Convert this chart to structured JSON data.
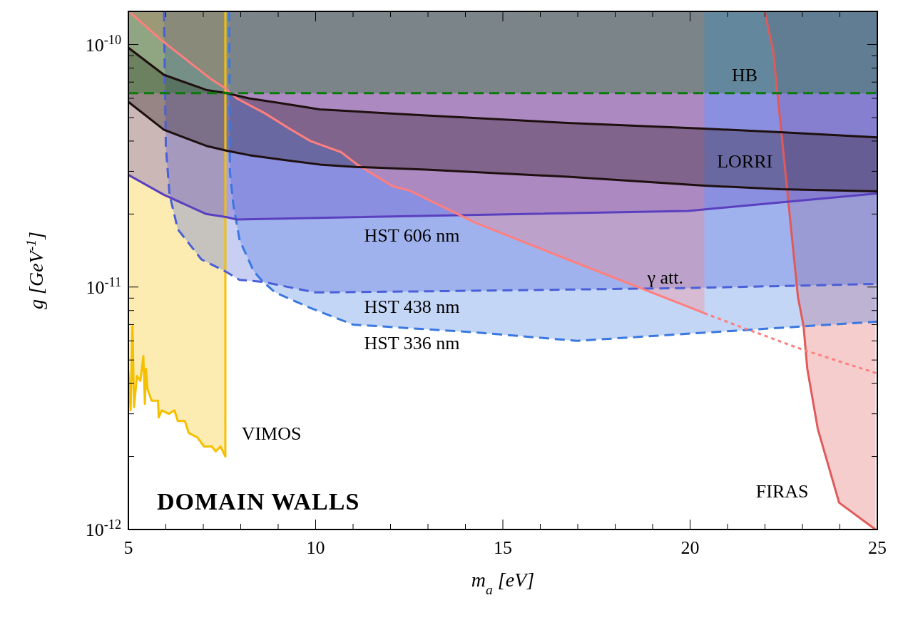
{
  "chart_data": {
    "type": "line",
    "xlabel": "m$_{a}$ [eV]",
    "ylabel": "g [GeV$^{-1}$]",
    "log": "y",
    "grid": false,
    "xlim": [
      5,
      25
    ],
    "ylim": [
      1e-12,
      1.37e-10
    ],
    "xticks": [
      5,
      {
        "value": 6,
        "label": null
      },
      {
        "value": 7,
        "label": null
      },
      {
        "value": 8,
        "label": null
      },
      {
        "value": 9,
        "label": null
      },
      10,
      {
        "value": 11,
        "label": null
      },
      {
        "value": 12,
        "label": null
      },
      {
        "value": 13,
        "label": null
      },
      {
        "value": 14,
        "label": null
      },
      15,
      {
        "value": 16,
        "label": null
      },
      {
        "value": 17,
        "label": null
      },
      {
        "value": 18,
        "label": null
      },
      {
        "value": 19,
        "label": null
      },
      20,
      {
        "value": 21,
        "label": null
      },
      {
        "value": 22,
        "label": null
      },
      {
        "value": 23,
        "label": null
      },
      {
        "value": 24,
        "label": null
      },
      25
    ],
    "yticks": [
      {
        "value": 1e-12,
        "label": "10$^{-12}$"
      },
      {
        "value": 2e-12,
        "label": null
      },
      {
        "value": 3e-12,
        "label": null
      },
      {
        "value": 4e-12,
        "label": null
      },
      {
        "value": 5e-12,
        "label": null
      },
      {
        "value": 6e-12,
        "label": null
      },
      {
        "value": 7e-12,
        "label": null
      },
      {
        "value": 8e-12,
        "label": null
      },
      {
        "value": 9e-12,
        "label": null
      },
      {
        "value": 1e-11,
        "label": "10$^{-11}$"
      },
      {
        "value": 2e-11,
        "label": null
      },
      {
        "value": 3e-11,
        "label": null
      },
      {
        "value": 4e-11,
        "label": null
      },
      {
        "value": 5e-11,
        "label": null
      },
      {
        "value": 6e-11,
        "label": null
      },
      {
        "value": 7e-11,
        "label": null
      },
      {
        "value": 8e-11,
        "label": null
      },
      {
        "value": 9e-11,
        "label": null
      },
      {
        "value": 1e-10,
        "label": "10$^{-10}$"
      }
    ],
    "series": [
      {
        "name": "VIMOS",
        "color": "#f5c000",
        "x": [
          5.0,
          5.06,
          5.11,
          5.15,
          5.23,
          5.32,
          5.4,
          5.44,
          5.47,
          5.51,
          5.62,
          5.79,
          5.81,
          5.89,
          6.08,
          6.23,
          6.32,
          6.51,
          6.61,
          6.84,
          7.02,
          7.08,
          7.23,
          7.33,
          7.46,
          7.59,
          7.59
        ],
        "values": [
          4.5e-12,
          3.1e-12,
          6.9e-12,
          3.2e-12,
          4.3e-12,
          4.1e-12,
          5.2e-12,
          3.3e-12,
          4.6e-12,
          3.8e-12,
          3.4e-12,
          3.4e-12,
          2.9e-12,
          3.1e-12,
          3e-12,
          3.1e-12,
          2.8e-12,
          2.8e-12,
          2.5e-12,
          2.4e-12,
          2.2e-12,
          2.2e-12,
          2.2e-12,
          2.1e-12,
          2.2e-12,
          2e-12,
          1.37e-10
        ],
        "lower": [
          4.5e-12,
          3.1e-12,
          6.9e-12,
          3.2e-12,
          4.3e-12,
          4.1e-12,
          5.2e-12,
          3.3e-12,
          4.6e-12,
          3.8e-12,
          3.4e-12,
          3.4e-12,
          2.9e-12,
          3.1e-12,
          3e-12,
          3.1e-12,
          2.8e-12,
          2.8e-12,
          2.5e-12,
          2.4e-12,
          2.2e-12,
          2.2e-12,
          2.2e-12,
          2.1e-12,
          2.2e-12,
          2e-12,
          1.37e-10
        ],
        "upper": [
          1.37e-10,
          1.37e-10,
          1.37e-10,
          1.37e-10,
          1.37e-10,
          1.37e-10,
          1.37e-10,
          1.37e-10,
          1.37e-10,
          1.37e-10,
          1.37e-10,
          1.37e-10,
          1.37e-10,
          1.37e-10,
          1.37e-10,
          1.37e-10,
          1.37e-10,
          1.37e-10,
          1.37e-10,
          1.37e-10,
          1.37e-10,
          1.37e-10,
          1.37e-10,
          1.37e-10,
          1.37e-10,
          1.37e-10,
          1.37e-10
        ]
      },
      {
        "name": "FIRAS",
        "color": "#e05a5a",
        "x": [
          21.99,
          22.22,
          22.88,
          23.03,
          23.13,
          23.41,
          23.98,
          24.95
        ],
        "values": [
          1.37e-10,
          9.4e-11,
          9.1e-12,
          6.9e-12,
          4.6e-12,
          2.6e-12,
          1.29e-12,
          1e-12
        ],
        "lower": [
          1.37e-10,
          9.4e-11,
          9.1e-12,
          6.9e-12,
          4.6e-12,
          2.6e-12,
          1.29e-12,
          1e-12
        ],
        "upper": [
          1.37e-10,
          1.37e-10,
          1.37e-10,
          1.37e-10,
          1.37e-10,
          1.37e-10,
          1.37e-10,
          1.37e-10
        ]
      },
      {
        "name": "HST 336 nm",
        "color": "#3a78e0",
        "line_style": "dashed",
        "x": [
          7.69,
          7.71,
          7.8,
          7.97,
          8.35,
          8.6,
          8.92,
          9.86,
          11.0,
          14.27,
          16.98,
          25
        ],
        "values": [
          1.37e-10,
          3e-11,
          2.2e-11,
          1.56e-11,
          1.16e-11,
          1.05e-11,
          9.5e-12,
          8.2e-12,
          7e-12,
          6.5e-12,
          6e-12,
          7.2e-12
        ],
        "lower": [
          1.37e-10,
          3e-11,
          2.2e-11,
          1.56e-11,
          1.16e-11,
          1.05e-11,
          9.5e-12,
          8.2e-12,
          7e-12,
          6.5e-12,
          6e-12,
          7.2e-12
        ],
        "upper": [
          1.37e-10,
          1.37e-10,
          1.37e-10,
          1.37e-10,
          1.37e-10,
          1.37e-10,
          1.37e-10,
          1.37e-10,
          1.37e-10,
          1.37e-10,
          1.37e-10,
          1.37e-10
        ]
      },
      {
        "name": "HST 438 nm",
        "color": "#4a5fd8",
        "line_style": "dashed",
        "x": [
          5.95,
          6.0,
          6.1,
          6.32,
          6.95,
          7.59,
          7.97,
          8.6,
          9.98,
          12.95,
          19.89,
          25
        ],
        "values": [
          1.37e-10,
          3.8e-11,
          2.4e-11,
          1.73e-11,
          1.3e-11,
          1.16e-11,
          1.07e-11,
          1.05e-11,
          9.5e-12,
          9.6e-12,
          9.9e-12,
          1.03e-11
        ],
        "lower": [
          1.37e-10,
          3.8e-11,
          2.4e-11,
          1.73e-11,
          1.3e-11,
          1.16e-11,
          1.07e-11,
          1.05e-11,
          9.5e-12,
          9.6e-12,
          9.9e-12,
          1.03e-11
        ],
        "upper": [
          1.37e-10,
          1.37e-10,
          1.37e-10,
          1.37e-10,
          1.37e-10,
          1.37e-10,
          1.37e-10,
          1.37e-10,
          1.37e-10,
          1.37e-10,
          1.37e-10,
          1.37e-10
        ]
      },
      {
        "name": "HST 606 nm",
        "color": "#5a3fbf",
        "x": [
          5,
          5.95,
          7.08,
          7.63,
          7.89,
          19.95,
          25
        ],
        "values": [
          2.9e-11,
          2.4e-11,
          2e-11,
          1.94e-11,
          1.9e-11,
          2.06e-11,
          2.43e-11
        ],
        "lower": [
          2.9e-11,
          2.4e-11,
          2e-11,
          1.94e-11,
          1.9e-11,
          2.06e-11,
          2.43e-11
        ],
        "upper": [
          1.37e-10,
          1.37e-10,
          1.37e-10,
          1.37e-10,
          1.37e-10,
          1.37e-10,
          1.37e-10
        ]
      },
      {
        "name": "γ att.",
        "color": "#ff7f7f",
        "x": [
          5.06,
          5.89,
          7.21,
          7.59,
          7.89,
          8.65,
          9.3,
          9.86,
          10.68,
          11.11,
          12.06,
          12.51,
          14.27,
          16.73,
          20.38
        ],
        "values": [
          1.35e-10,
          1.04e-10,
          7.2e-11,
          6.6e-11,
          6e-11,
          5.2e-11,
          4.5e-11,
          4e-11,
          3.6e-11,
          3.2e-11,
          2.6e-11,
          2.5e-11,
          1.84e-11,
          1.3e-11,
          7.8e-12
        ],
        "lower": [
          1.35e-10,
          1.04e-10,
          7.2e-11,
          6.6e-11,
          6e-11,
          5.2e-11,
          4.5e-11,
          4e-11,
          3.6e-11,
          3.2e-11,
          2.6e-11,
          2.5e-11,
          1.84e-11,
          1.3e-11,
          7.8e-12
        ],
        "upper": [
          1.37e-10,
          1.37e-10,
          1.37e-10,
          1.37e-10,
          1.37e-10,
          1.37e-10,
          1.37e-10,
          1.37e-10,
          1.37e-10,
          1.37e-10,
          1.37e-10,
          1.37e-10,
          1.37e-10,
          1.37e-10,
          1.37e-10
        ]
      },
      {
        "color": "#ff7f7f",
        "line_style": "dotted",
        "x": [
          20.38,
          21.52,
          23.03,
          25
        ],
        "values": [
          7.8e-12,
          6.7e-12,
          5.5e-12,
          4.4e-12
        ]
      },
      {
        "name": "LORRI",
        "color": "#1e1010",
        "x": [
          5,
          5.95,
          7.08,
          7.63,
          8.22,
          9.16,
          10.11,
          11.05,
          12.95,
          16.73,
          20.38,
          22.41,
          25
        ],
        "values": [
          5.8e-11,
          4.45e-11,
          3.82e-11,
          3.65e-11,
          3.5e-11,
          3.34e-11,
          3.2e-11,
          3.13e-11,
          3.05e-11,
          2.85e-11,
          2.62e-11,
          2.53e-11,
          2.48e-11
        ],
        "lower": [
          5.8e-11,
          4.45e-11,
          3.82e-11,
          3.65e-11,
          3.5e-11,
          3.34e-11,
          3.2e-11,
          3.13e-11,
          3.05e-11,
          2.85e-11,
          2.62e-11,
          2.53e-11,
          2.48e-11
        ],
        "upper": [
          9.7e-11,
          7.5e-11,
          6.5e-11,
          6.3e-11,
          6e-11,
          5.7e-11,
          5.4e-11,
          5.3e-11,
          5.1e-11,
          4.75e-11,
          4.5e-11,
          4.35e-11,
          4.14e-11
        ]
      },
      {
        "color": "#1e1010",
        "x": [
          5,
          5.95,
          7.08,
          7.63,
          8.22,
          9.16,
          10.11,
          11.05,
          12.95,
          16.73,
          20.38,
          22.41,
          25
        ],
        "values": [
          9.7e-11,
          7.5e-11,
          6.5e-11,
          6.3e-11,
          6e-11,
          5.7e-11,
          5.4e-11,
          5.3e-11,
          5.1e-11,
          4.75e-11,
          4.5e-11,
          4.35e-11,
          4.14e-11
        ]
      },
      {
        "name": "HB",
        "color": "#0a7a0a",
        "line_style": "dashed",
        "x": [
          5,
          25
        ],
        "values": [
          6.3e-11,
          6.3e-11
        ],
        "lower": [
          6.3e-11,
          6.3e-11
        ],
        "upper": [
          1.37e-10,
          1.37e-10
        ]
      }
    ],
    "annotations": [
      "DOMAIN WALLS"
    ]
  }
}
